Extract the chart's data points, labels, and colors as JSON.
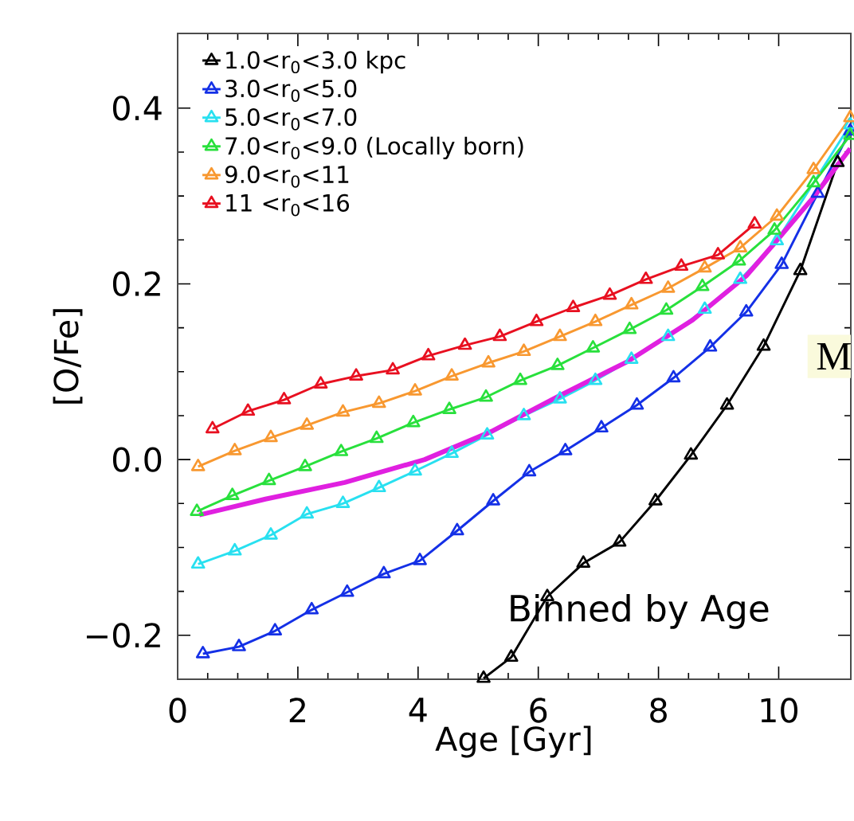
{
  "chart_data": {
    "type": "line",
    "xlabel": "Age  [Gyr]",
    "ylabel": "[O/Fe]",
    "annotations": [
      "Binned by Age",
      "M"
    ],
    "xlim": [
      0,
      11.2
    ],
    "ylim": [
      -0.25,
      0.485
    ],
    "xticks": [
      0,
      2,
      4,
      6,
      8,
      10
    ],
    "yticks": [
      {
        "value": -0.2,
        "label": "−0.2"
      },
      {
        "value": 0.0,
        "label": "0.0"
      },
      {
        "value": 0.2,
        "label": "0.2"
      },
      {
        "value": 0.4,
        "label": "0.4"
      }
    ],
    "legend": "top left",
    "marker": "triangle",
    "line_style": "solid",
    "series": [
      {
        "name": "1.0<r$_{0}$<3.0  kpc",
        "color": "#000000",
        "x": [
          5.09,
          5.55,
          6.15,
          6.75,
          7.35,
          7.95,
          8.54,
          9.14,
          9.75,
          10.36,
          10.98
        ],
        "values": [
          -0.249,
          -0.225,
          -0.156,
          -0.118,
          -0.094,
          -0.047,
          0.005,
          0.062,
          0.129,
          0.215,
          0.338
        ]
      },
      {
        "name": "3.0<r$_{0}$<5.0",
        "color": "#1430e6",
        "x": [
          0.42,
          1.02,
          1.62,
          2.23,
          2.82,
          3.43,
          4.03,
          4.65,
          5.25,
          5.85,
          6.45,
          7.05,
          7.64,
          8.25,
          8.86,
          9.46,
          10.05,
          10.65,
          11.19
        ],
        "values": [
          -0.221,
          -0.213,
          -0.195,
          -0.171,
          -0.151,
          -0.13,
          -0.115,
          -0.081,
          -0.047,
          -0.014,
          0.01,
          0.036,
          0.062,
          0.093,
          0.128,
          0.168,
          0.222,
          0.303,
          0.374
        ]
      },
      {
        "name": "5.0<r$_{0}$<7.0",
        "color": "#28e0f0",
        "x": [
          0.34,
          0.95,
          1.55,
          2.15,
          2.75,
          3.35,
          3.95,
          4.56,
          5.15,
          5.76,
          6.36,
          6.95,
          7.55,
          8.16,
          8.77,
          9.36,
          9.97,
          11.19
        ],
        "values": [
          -0.119,
          -0.104,
          -0.086,
          -0.062,
          -0.05,
          -0.032,
          -0.013,
          0.007,
          0.028,
          0.05,
          0.069,
          0.09,
          0.114,
          0.14,
          0.171,
          0.205,
          0.249,
          0.381
        ]
      },
      {
        "name": "7.0<r$_{0}$<9.0 (Locally born)",
        "color": "#28e03c",
        "x": [
          0.32,
          0.91,
          1.52,
          2.12,
          2.72,
          3.31,
          3.92,
          4.52,
          5.13,
          5.7,
          6.32,
          6.91,
          7.52,
          8.13,
          8.73,
          9.34,
          9.93,
          10.58,
          11.19
        ],
        "values": [
          -0.059,
          -0.041,
          -0.024,
          -0.008,
          0.009,
          0.024,
          0.042,
          0.057,
          0.071,
          0.09,
          0.107,
          0.127,
          0.148,
          0.17,
          0.197,
          0.226,
          0.261,
          0.315,
          0.369
        ]
      },
      {
        "name": "9.0<r$_{0}$<11",
        "color": "#f89830",
        "x": [
          0.34,
          0.95,
          1.55,
          2.15,
          2.75,
          3.35,
          3.95,
          4.56,
          5.17,
          5.76,
          6.36,
          6.95,
          7.55,
          8.16,
          8.77,
          9.36,
          9.97,
          10.58,
          11.19
        ],
        "values": [
          -0.008,
          0.01,
          0.025,
          0.039,
          0.054,
          0.064,
          0.078,
          0.095,
          0.11,
          0.123,
          0.14,
          0.157,
          0.176,
          0.195,
          0.218,
          0.241,
          0.277,
          0.33,
          0.389
        ]
      },
      {
        "name": "11 <r$_{0}$<16",
        "color": "#e81020",
        "x": [
          0.58,
          1.17,
          1.77,
          2.38,
          2.97,
          3.58,
          4.17,
          4.78,
          5.36,
          5.97,
          6.58,
          7.19,
          7.79,
          8.38,
          8.99,
          9.6
        ],
        "values": [
          0.035,
          0.055,
          0.068,
          0.086,
          0.095,
          0.102,
          0.118,
          0.13,
          0.14,
          0.157,
          0.173,
          0.187,
          0.205,
          0.22,
          0.233,
          0.268
        ]
      },
      {
        "color": "#e020e0",
        "marker": "none",
        "x": [
          0.36,
          1.46,
          2.78,
          4.11,
          5.22,
          6.36,
          7.47,
          8.57,
          9.46,
          9.89,
          10.56,
          11.19
        ],
        "values": [
          -0.063,
          -0.045,
          -0.026,
          0.0,
          0.032,
          0.073,
          0.111,
          0.159,
          0.209,
          0.243,
          0.297,
          0.354
        ]
      }
    ]
  }
}
